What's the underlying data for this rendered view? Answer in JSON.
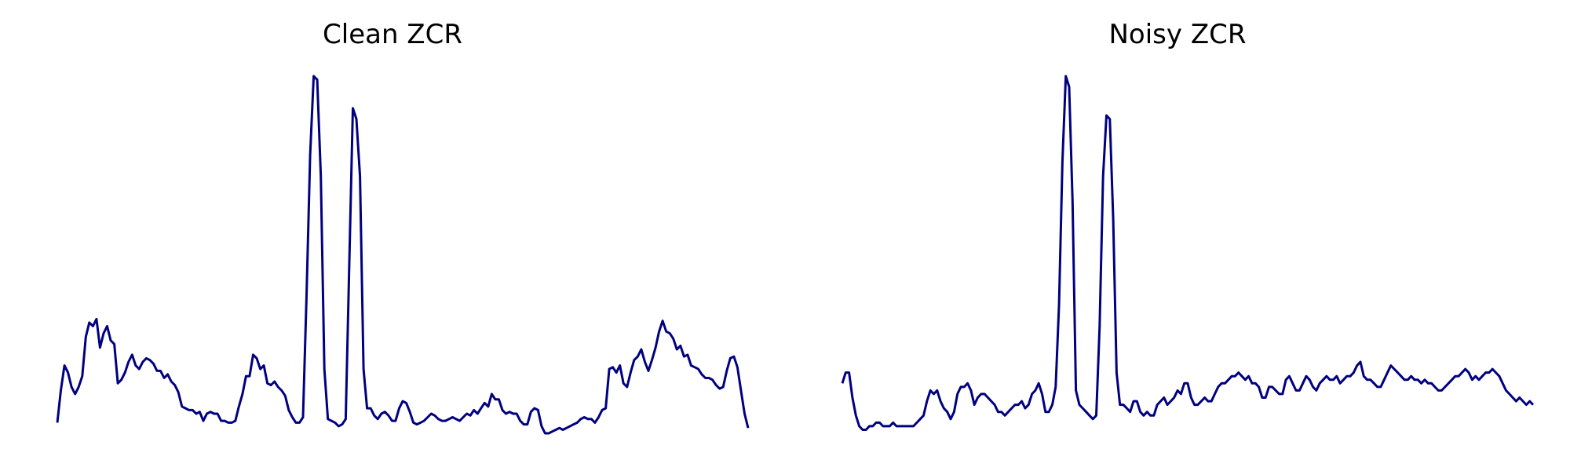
{
  "chart_data": [
    {
      "type": "line",
      "title": "Clean ZCR",
      "xlabel": "",
      "ylabel": "",
      "axes": "off",
      "grid": false,
      "ylim": [
        0,
        1
      ],
      "color": "#000080",
      "y": [
        0.03,
        0.12,
        0.19,
        0.17,
        0.13,
        0.11,
        0.13,
        0.16,
        0.27,
        0.31,
        0.3,
        0.32,
        0.24,
        0.28,
        0.3,
        0.26,
        0.25,
        0.14,
        0.15,
        0.17,
        0.2,
        0.22,
        0.19,
        0.18,
        0.2,
        0.21,
        0.205,
        0.195,
        0.175,
        0.175,
        0.155,
        0.165,
        0.145,
        0.135,
        0.115,
        0.075,
        0.07,
        0.065,
        0.065,
        0.055,
        0.06,
        0.035,
        0.055,
        0.06,
        0.055,
        0.055,
        0.035,
        0.035,
        0.03,
        0.03,
        0.035,
        0.075,
        0.11,
        0.16,
        0.16,
        0.22,
        0.21,
        0.18,
        0.19,
        0.14,
        0.135,
        0.145,
        0.13,
        0.12,
        0.105,
        0.065,
        0.045,
        0.03,
        0.03,
        0.045,
        0.385,
        0.78,
        1.0,
        0.99,
        0.72,
        0.18,
        0.04,
        0.035,
        0.03,
        0.02,
        0.025,
        0.04,
        0.48,
        0.91,
        0.88,
        0.72,
        0.18,
        0.07,
        0.07,
        0.05,
        0.04,
        0.055,
        0.06,
        0.05,
        0.035,
        0.035,
        0.07,
        0.09,
        0.085,
        0.06,
        0.03,
        0.025,
        0.03,
        0.035,
        0.045,
        0.055,
        0.05,
        0.04,
        0.035,
        0.035,
        0.04,
        0.045,
        0.04,
        0.035,
        0.045,
        0.055,
        0.05,
        0.065,
        0.055,
        0.07,
        0.085,
        0.075,
        0.11,
        0.095,
        0.095,
        0.065,
        0.055,
        0.06,
        0.055,
        0.055,
        0.035,
        0.025,
        0.025,
        0.06,
        0.07,
        0.065,
        0.02,
        0.0,
        0.0,
        0.005,
        0.01,
        0.015,
        0.01,
        0.015,
        0.02,
        0.025,
        0.03,
        0.04,
        0.045,
        0.04,
        0.04,
        0.03,
        0.045,
        0.065,
        0.07,
        0.18,
        0.185,
        0.17,
        0.19,
        0.14,
        0.13,
        0.17,
        0.205,
        0.215,
        0.235,
        0.2,
        0.175,
        0.205,
        0.24,
        0.285,
        0.315,
        0.285,
        0.28,
        0.265,
        0.235,
        0.245,
        0.215,
        0.22,
        0.19,
        0.185,
        0.18,
        0.165,
        0.155,
        0.155,
        0.15,
        0.135,
        0.125,
        0.13,
        0.175,
        0.21,
        0.215,
        0.185,
        0.12,
        0.055,
        0.015
      ]
    },
    {
      "type": "line",
      "title": "Noisy ZCR",
      "xlabel": "",
      "ylabel": "",
      "axes": "off",
      "grid": false,
      "ylim": [
        0,
        1
      ],
      "color": "#000080",
      "y": [
        0.14,
        0.17,
        0.17,
        0.1,
        0.05,
        0.02,
        0.01,
        0.01,
        0.02,
        0.02,
        0.03,
        0.03,
        0.02,
        0.02,
        0.02,
        0.03,
        0.02,
        0.02,
        0.02,
        0.02,
        0.02,
        0.02,
        0.03,
        0.04,
        0.05,
        0.09,
        0.12,
        0.11,
        0.12,
        0.09,
        0.07,
        0.06,
        0.04,
        0.06,
        0.11,
        0.13,
        0.13,
        0.14,
        0.12,
        0.08,
        0.1,
        0.11,
        0.11,
        0.1,
        0.09,
        0.08,
        0.06,
        0.06,
        0.05,
        0.06,
        0.07,
        0.08,
        0.08,
        0.09,
        0.07,
        0.08,
        0.11,
        0.12,
        0.14,
        0.11,
        0.06,
        0.06,
        0.08,
        0.13,
        0.36,
        0.76,
        1.0,
        0.97,
        0.65,
        0.12,
        0.08,
        0.07,
        0.06,
        0.05,
        0.04,
        0.05,
        0.3,
        0.72,
        0.89,
        0.88,
        0.6,
        0.17,
        0.08,
        0.08,
        0.07,
        0.06,
        0.09,
        0.09,
        0.06,
        0.05,
        0.06,
        0.05,
        0.05,
        0.08,
        0.09,
        0.1,
        0.08,
        0.09,
        0.1,
        0.12,
        0.11,
        0.14,
        0.14,
        0.1,
        0.08,
        0.08,
        0.09,
        0.1,
        0.09,
        0.09,
        0.11,
        0.13,
        0.14,
        0.14,
        0.15,
        0.16,
        0.16,
        0.17,
        0.16,
        0.15,
        0.16,
        0.14,
        0.14,
        0.13,
        0.1,
        0.1,
        0.13,
        0.13,
        0.12,
        0.11,
        0.11,
        0.15,
        0.16,
        0.14,
        0.12,
        0.12,
        0.14,
        0.16,
        0.15,
        0.13,
        0.12,
        0.14,
        0.15,
        0.16,
        0.15,
        0.15,
        0.16,
        0.14,
        0.15,
        0.16,
        0.16,
        0.17,
        0.19,
        0.2,
        0.16,
        0.15,
        0.15,
        0.14,
        0.13,
        0.13,
        0.15,
        0.17,
        0.19,
        0.18,
        0.17,
        0.16,
        0.15,
        0.15,
        0.16,
        0.15,
        0.15,
        0.14,
        0.15,
        0.14,
        0.14,
        0.13,
        0.12,
        0.12,
        0.13,
        0.14,
        0.15,
        0.16,
        0.16,
        0.17,
        0.18,
        0.17,
        0.15,
        0.16,
        0.15,
        0.16,
        0.17,
        0.17,
        0.18,
        0.17,
        0.16,
        0.14,
        0.12,
        0.11,
        0.1,
        0.09,
        0.1,
        0.09,
        0.08,
        0.09,
        0.08
      ]
    }
  ]
}
